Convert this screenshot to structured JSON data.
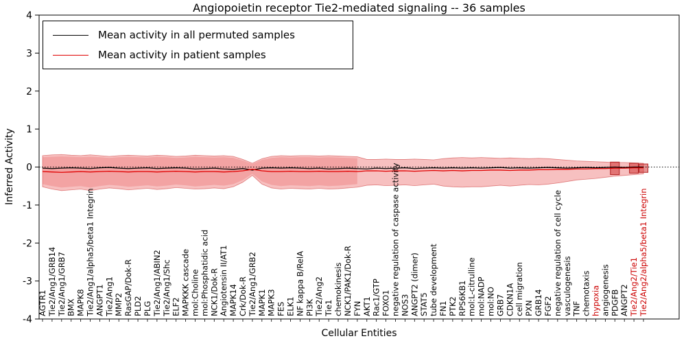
{
  "title": "Angiopoietin receptor Tie2-mediated signaling -- 36 samples",
  "axes": {
    "xlabel": "Cellular Entities",
    "ylabel": "Inferred Activity",
    "yticks": [
      -4,
      -3,
      -2,
      -1,
      0,
      1,
      2,
      3,
      4
    ],
    "ylim": [
      -4,
      4
    ]
  },
  "chart_data": {
    "type": "line",
    "title": "Angiopoietin receptor Tie2-mediated signaling -- 36 samples",
    "xlabel": "Cellular Entities",
    "ylabel": "Inferred Activity",
    "ylim": [
      -4,
      4
    ],
    "grid": false,
    "zero_line": "dotted",
    "legend_position": "upper left",
    "categories": [
      "AGTR1",
      "Tie2/Ang1/GRB14",
      "Tie2/Ang1/GRB7",
      "BMX",
      "MAPK8",
      "Tie2/Ang1/alpha5/beta1 Integrin",
      "ANGPT1",
      "Tie2/Ang1",
      "MMP2",
      "RasGAP/Dok-R",
      "PLD2",
      "PLG",
      "Tie2/Ang1/ABIN2",
      "Tie2/Ang1/Shc",
      "ELF2",
      "MAPKKK cascade",
      "mol:Choline",
      "mol:Phosphatidic acid",
      "NCK1/Dok-R",
      "Angiotensin II/AT1",
      "MAPK14",
      "Crk/Dok-R",
      "Tie2/Ang1/GRB2",
      "MAPK1",
      "MAPK3",
      "FES",
      "ELK1",
      "NF kappa B/RelA",
      "PI3K",
      "Tie2/Ang2",
      "Tie1",
      "chemokinesis",
      "NCK1/PAK1/Dok-R",
      "FYN",
      "AKT1",
      "Rac1/GTP",
      "FOXO1",
      "negative regulation of caspase activity",
      "NOS3",
      "ANGPT2 (dimer)",
      "STAT5",
      "tube development",
      "FN1",
      "PTK2",
      "RPS6KB1",
      "mol:L-citrulline",
      "mol:NADP",
      "mol:NO",
      "GRB7",
      "CDKN1A",
      "cell migration",
      "PXN",
      "GRB14",
      "FGF2",
      "negative regulation of cell cycle",
      "vasculogenesis",
      "TNF",
      "chemotaxis",
      "hypoxia",
      "angiogenesis",
      "PDGFB",
      "ANGPT2",
      "Tie2/Ang2/Tie1",
      "Tie2/Ang2/alpha5/beta1 Integrin"
    ],
    "label_red_indices": [
      58,
      62,
      63
    ],
    "series": [
      {
        "name": "Mean activity in all permuted samples",
        "color": "#000000",
        "values": [
          -0.03,
          -0.04,
          -0.03,
          -0.02,
          -0.03,
          -0.04,
          -0.02,
          -0.01,
          -0.03,
          -0.04,
          -0.03,
          -0.02,
          -0.04,
          -0.03,
          -0.02,
          -0.03,
          -0.05,
          -0.04,
          -0.03,
          -0.05,
          -0.06,
          -0.04,
          -0.08,
          -0.03,
          -0.02,
          -0.03,
          -0.02,
          -0.03,
          -0.04,
          -0.03,
          -0.05,
          -0.04,
          -0.03,
          -0.04,
          -0.05,
          -0.03,
          -0.04,
          -0.03,
          -0.02,
          -0.04,
          -0.03,
          -0.02,
          -0.03,
          -0.02,
          -0.03,
          -0.02,
          -0.03,
          -0.02,
          -0.01,
          -0.03,
          -0.02,
          -0.03,
          -0.02,
          -0.01,
          -0.02,
          -0.03,
          -0.02,
          -0.01,
          -0.02,
          -0.01,
          0.0,
          -0.01,
          0.0,
          0.0
        ]
      },
      {
        "name": "Mean activity in patient samples",
        "color": "#e00000",
        "values": [
          -0.12,
          -0.13,
          -0.14,
          -0.13,
          -0.12,
          -0.13,
          -0.12,
          -0.11,
          -0.12,
          -0.13,
          -0.12,
          -0.12,
          -0.13,
          -0.12,
          -0.11,
          -0.12,
          -0.13,
          -0.12,
          -0.12,
          -0.13,
          -0.12,
          -0.1,
          -0.06,
          -0.1,
          -0.12,
          -0.12,
          -0.11,
          -0.12,
          -0.12,
          -0.11,
          -0.12,
          -0.12,
          -0.11,
          -0.12,
          -0.1,
          -0.1,
          -0.11,
          -0.1,
          -0.1,
          -0.11,
          -0.1,
          -0.09,
          -0.1,
          -0.09,
          -0.1,
          -0.09,
          -0.09,
          -0.08,
          -0.08,
          -0.09,
          -0.08,
          -0.08,
          -0.07,
          -0.07,
          -0.06,
          -0.06,
          -0.05,
          -0.05,
          -0.04,
          -0.04,
          -0.03,
          -0.03,
          -0.02,
          -0.02
        ]
      }
    ],
    "band": {
      "fill": "rgba(230,60,60,0.32)",
      "edge": "rgba(200,40,40,0.55)",
      "upper": [
        0.3,
        0.32,
        0.33,
        0.31,
        0.3,
        0.32,
        0.3,
        0.28,
        0.3,
        0.31,
        0.3,
        0.29,
        0.31,
        0.3,
        0.28,
        0.29,
        0.31,
        0.3,
        0.29,
        0.3,
        0.28,
        0.2,
        0.1,
        0.22,
        0.28,
        0.3,
        0.29,
        0.3,
        0.3,
        0.29,
        0.3,
        0.29,
        0.28,
        0.27,
        0.2,
        0.2,
        0.21,
        0.2,
        0.2,
        0.21,
        0.2,
        0.19,
        0.22,
        0.24,
        0.25,
        0.24,
        0.25,
        0.24,
        0.23,
        0.24,
        0.23,
        0.22,
        0.23,
        0.22,
        0.2,
        0.18,
        0.16,
        0.15,
        0.14,
        0.13,
        0.12,
        0.12,
        0.11,
        0.1
      ],
      "lower": [
        -0.52,
        -0.58,
        -0.62,
        -0.6,
        -0.58,
        -0.62,
        -0.58,
        -0.55,
        -0.57,
        -0.6,
        -0.58,
        -0.56,
        -0.59,
        -0.57,
        -0.54,
        -0.56,
        -0.58,
        -0.57,
        -0.55,
        -0.57,
        -0.52,
        -0.4,
        -0.22,
        -0.45,
        -0.55,
        -0.58,
        -0.56,
        -0.57,
        -0.58,
        -0.56,
        -0.58,
        -0.57,
        -0.55,
        -0.53,
        -0.48,
        -0.47,
        -0.49,
        -0.48,
        -0.47,
        -0.49,
        -0.47,
        -0.45,
        -0.5,
        -0.52,
        -0.53,
        -0.52,
        -0.52,
        -0.5,
        -0.48,
        -0.5,
        -0.48,
        -0.46,
        -0.47,
        -0.45,
        -0.42,
        -0.38,
        -0.34,
        -0.32,
        -0.3,
        -0.27,
        -0.24,
        -0.22,
        -0.2,
        -0.18
      ]
    },
    "band2": {
      "start_index": 0,
      "fill": "rgba(230,60,60,0.22)",
      "upper": [
        0.26,
        0.27,
        0.28,
        0.27,
        0.26,
        0.27,
        0.26,
        0.24,
        0.26,
        0.27,
        0.26,
        0.25,
        0.27,
        0.26,
        0.24,
        0.25,
        0.27,
        0.26,
        0.25,
        0.26,
        0.24,
        0.17,
        0.08,
        0.19,
        0.24,
        0.26,
        0.25,
        0.26,
        0.26,
        0.25,
        0.26,
        0.25,
        0.24,
        0.23
      ],
      "lower": [
        -0.45,
        -0.5,
        -0.54,
        -0.52,
        -0.5,
        -0.54,
        -0.5,
        -0.47,
        -0.49,
        -0.52,
        -0.5,
        -0.48,
        -0.51,
        -0.49,
        -0.46,
        -0.48,
        -0.51,
        -0.49,
        -0.47,
        -0.49,
        -0.45,
        -0.34,
        -0.18,
        -0.38,
        -0.47,
        -0.5,
        -0.48,
        -0.49,
        -0.5,
        -0.48,
        -0.5,
        -0.49,
        -0.47,
        -0.45
      ]
    },
    "boxes": [
      {
        "index": 60,
        "top": 0.13,
        "bottom": -0.2
      },
      {
        "index": 62,
        "top": 0.1,
        "bottom": -0.16
      },
      {
        "index": 63,
        "top": 0.08,
        "bottom": -0.14
      }
    ]
  }
}
